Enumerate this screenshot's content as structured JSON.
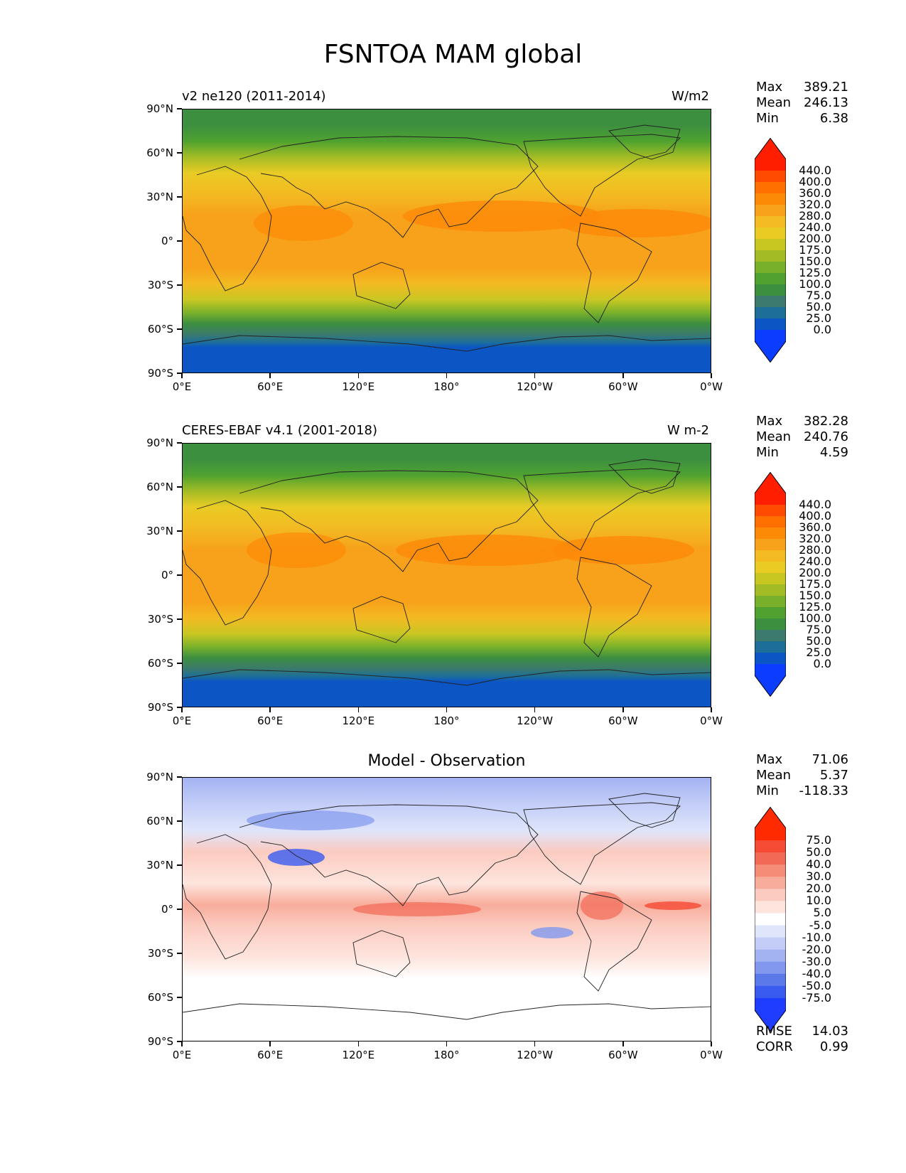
{
  "figure": {
    "title": "FSNTOA MAM global"
  },
  "panels": [
    {
      "id": "model",
      "title_left": "v2 ne120 (2011-2014)",
      "title_right": "W/m2",
      "title_center": "",
      "stats": [
        {
          "label": "Max",
          "value": "389.21"
        },
        {
          "label": "Mean",
          "value": "246.13"
        },
        {
          "label": "Min",
          "value": "6.38"
        }
      ]
    },
    {
      "id": "obs",
      "title_left": "CERES-EBAF v4.1 (2001-2018)",
      "title_right": "W m-2",
      "title_center": "",
      "stats": [
        {
          "label": "Max",
          "value": "382.28"
        },
        {
          "label": "Mean",
          "value": "240.76"
        },
        {
          "label": "Min",
          "value": "4.59"
        }
      ]
    },
    {
      "id": "diff",
      "title_left": "",
      "title_right": "",
      "title_center": "Model - Observation",
      "stats": [
        {
          "label": "Max",
          "value": "71.06"
        },
        {
          "label": "Mean",
          "value": "5.37"
        },
        {
          "label": "Min",
          "value": "-118.33"
        }
      ],
      "extra_stats": [
        {
          "label": "RMSE",
          "value": "14.03"
        },
        {
          "label": "CORR",
          "value": "0.99"
        }
      ]
    }
  ],
  "axes": {
    "lat_ticks": [
      "90°N",
      "60°N",
      "30°N",
      "0°",
      "30°S",
      "60°S",
      "90°S"
    ],
    "lon_ticks": [
      "0°E",
      "60°E",
      "120°E",
      "180°",
      "120°W",
      "60°W",
      "0°W"
    ]
  },
  "colorbars": {
    "field": {
      "levels": [
        "440.0",
        "400.0",
        "360.0",
        "320.0",
        "280.0",
        "240.0",
        "200.0",
        "175.0",
        "150.0",
        "125.0",
        "100.0",
        "75.0",
        "50.0",
        "25.0",
        "0.0"
      ],
      "colors": [
        "#ff1f00",
        "#ff4a00",
        "#ff6f00",
        "#fd8a07",
        "#f7a21a",
        "#f3ba22",
        "#e9cb24",
        "#c8c722",
        "#a3bc25",
        "#78b02b",
        "#4fa22f",
        "#3d8f40",
        "#3b7a6c",
        "#1d6f99",
        "#0b55c4",
        "#0a3dff"
      ]
    },
    "diff": {
      "levels": [
        "75.0",
        "50.0",
        "40.0",
        "30.0",
        "20.0",
        "10.0",
        "5.0",
        "-5.0",
        "-10.0",
        "-20.0",
        "-30.0",
        "-40.0",
        "-50.0",
        "-75.0"
      ],
      "colors": [
        "#ff2a00",
        "#f54a34",
        "#f26a55",
        "#f48c78",
        "#f8ad9c",
        "#fbcbc0",
        "#fde5de",
        "#ffffff",
        "#dfe5fb",
        "#c3cdf7",
        "#a3b3f2",
        "#8198ee",
        "#5c79ea",
        "#3a5bf0",
        "#1f3dff"
      ]
    }
  },
  "chart_data": [
    {
      "type": "heatmap",
      "title": "v2 ne120 (2011-2014)",
      "units": "W/m2",
      "xlabel": "",
      "ylabel": "",
      "x_range": [
        0,
        360
      ],
      "y_range": [
        -90,
        90
      ],
      "colorbar_levels": [
        0,
        25,
        50,
        75,
        100,
        125,
        150,
        175,
        200,
        240,
        280,
        320,
        360,
        400,
        440
      ],
      "max": 389.21,
      "mean": 246.13,
      "min": 6.38
    },
    {
      "type": "heatmap",
      "title": "CERES-EBAF v4.1 (2001-2018)",
      "units": "W m-2",
      "xlabel": "",
      "ylabel": "",
      "x_range": [
        0,
        360
      ],
      "y_range": [
        -90,
        90
      ],
      "colorbar_levels": [
        0,
        25,
        50,
        75,
        100,
        125,
        150,
        175,
        200,
        240,
        280,
        320,
        360,
        400,
        440
      ],
      "max": 382.28,
      "mean": 240.76,
      "min": 4.59
    },
    {
      "type": "heatmap",
      "title": "Model - Observation",
      "xlabel": "",
      "ylabel": "",
      "x_range": [
        0,
        360
      ],
      "y_range": [
        -90,
        90
      ],
      "colorbar_levels": [
        -75,
        -50,
        -40,
        -30,
        -20,
        -10,
        -5,
        5,
        10,
        20,
        30,
        40,
        50,
        75
      ],
      "max": 71.06,
      "mean": 5.37,
      "min": -118.33,
      "rmse": 14.03,
      "corr": 0.99
    }
  ]
}
